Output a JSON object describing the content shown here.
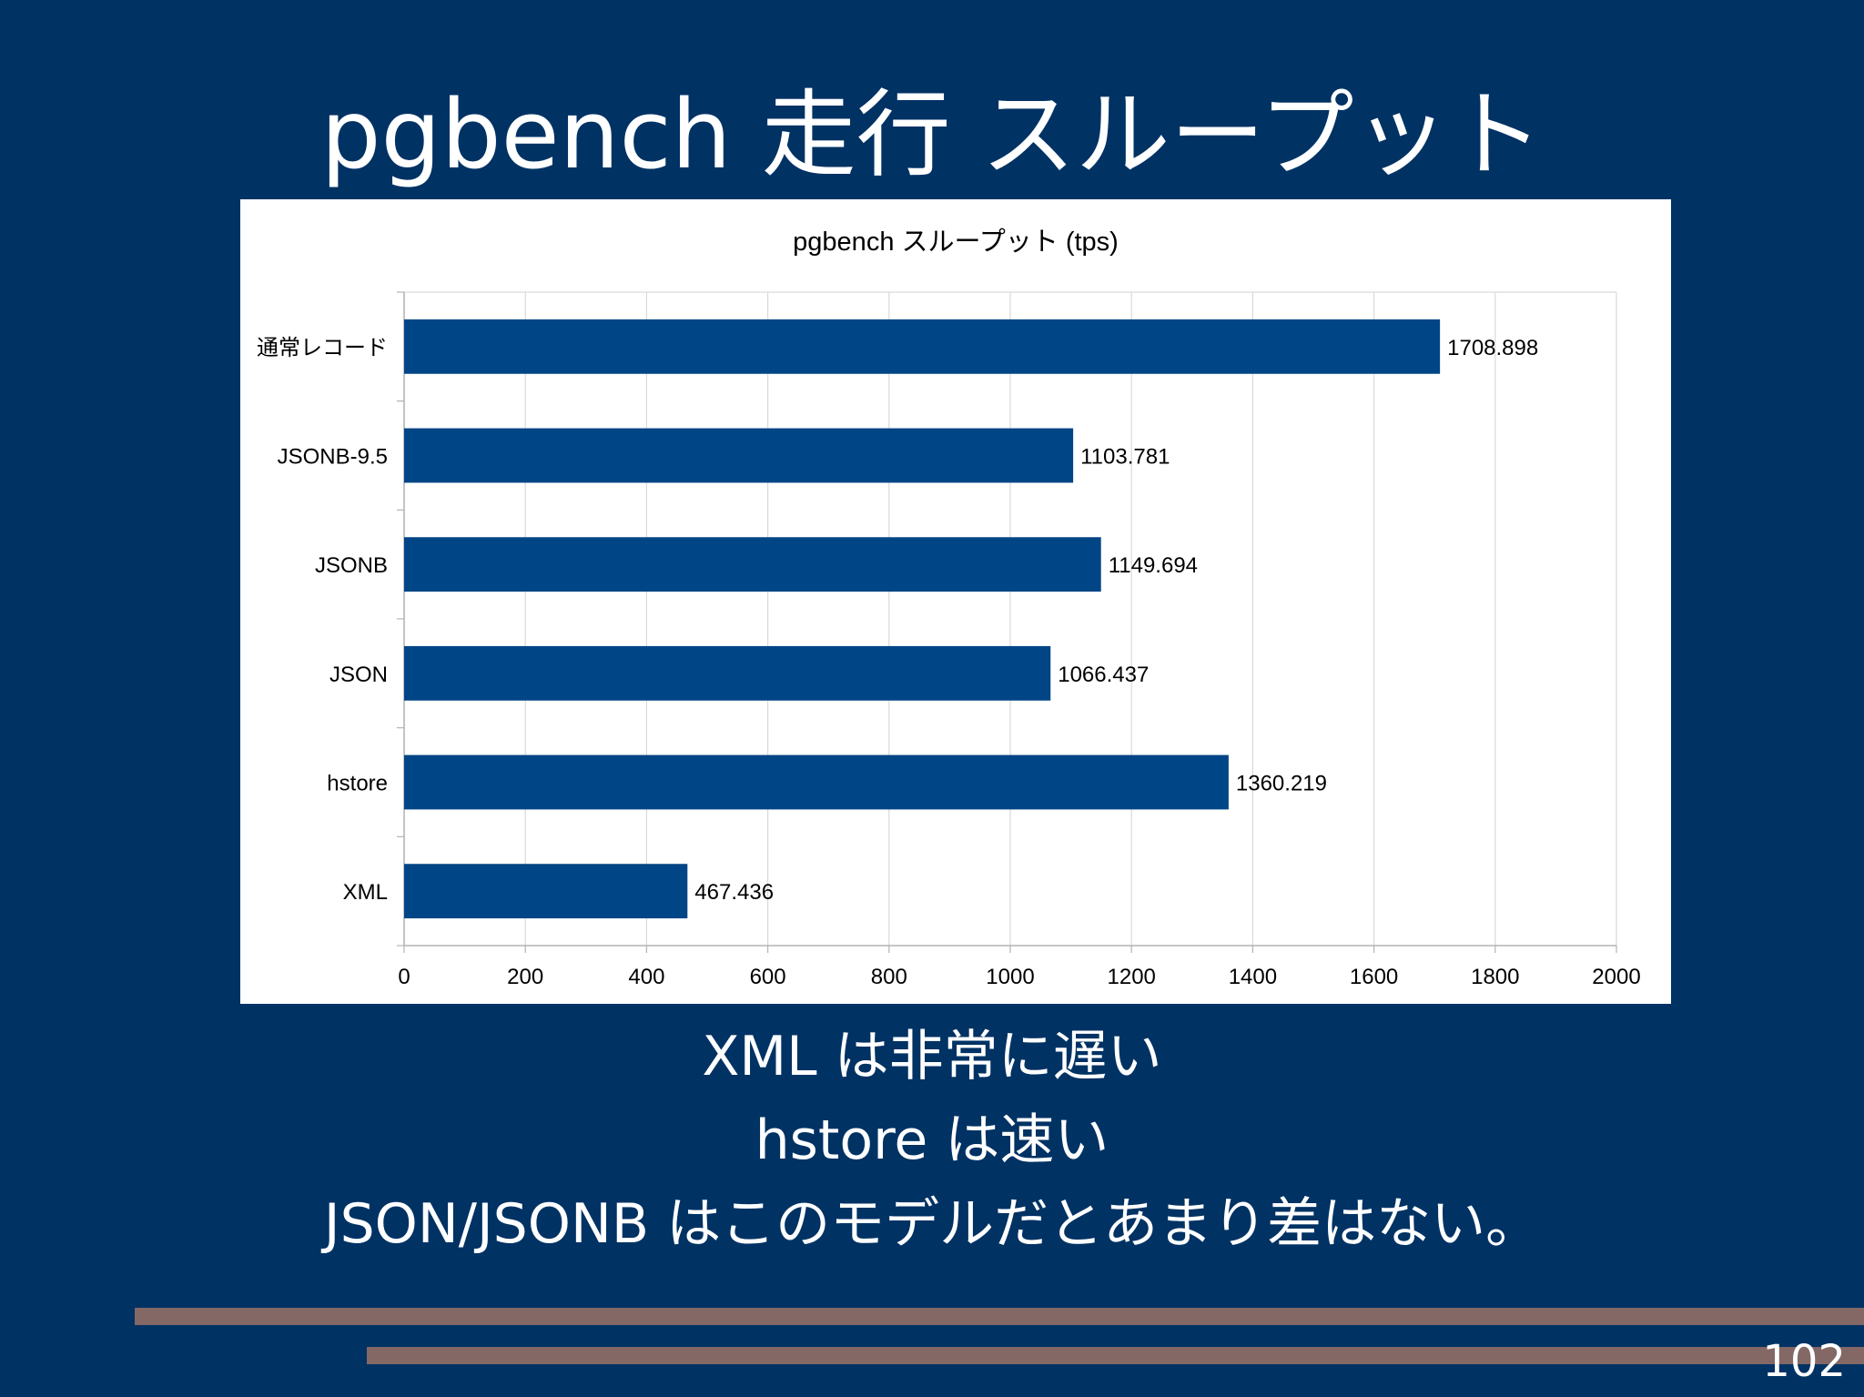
{
  "slide": {
    "title": "pgbench 走行 スループット",
    "bullets": [
      "XML は非常に遅い",
      "hstore は速い",
      "JSON/JSONB  はこのモデルだとあまり差はない。"
    ],
    "page_number": "102"
  },
  "colors": {
    "background": "#003264",
    "bar": "#004586",
    "decor_line": "#836866"
  },
  "chart_data": {
    "type": "bar",
    "orientation": "horizontal",
    "title": "pgbench スループット (tps)",
    "xlabel": "",
    "ylabel": "",
    "categories": [
      "通常レコード",
      "JSONB-9.5",
      "JSONB",
      "JSON",
      "hstore",
      "XML"
    ],
    "values": [
      1708.898,
      1103.781,
      1149.694,
      1066.437,
      1360.219,
      467.436
    ],
    "value_labels": [
      "1708.898",
      "1103.781",
      "1149.694",
      "1066.437",
      "1360.219",
      "467.436"
    ],
    "xlim": [
      0,
      2000
    ],
    "xticks": [
      0,
      200,
      400,
      600,
      800,
      1000,
      1200,
      1400,
      1600,
      1800,
      2000
    ],
    "grid": true,
    "legend": "none"
  }
}
